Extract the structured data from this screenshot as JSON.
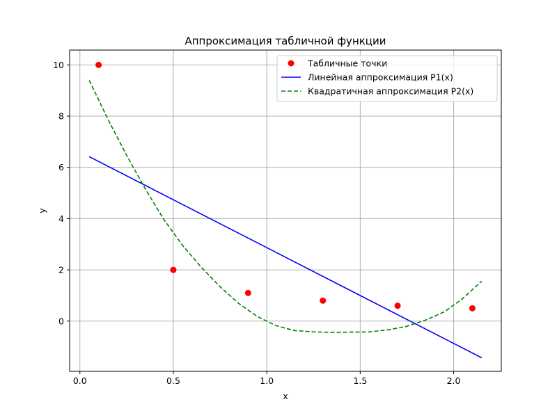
{
  "chart_data": {
    "type": "line",
    "title": "Аппроксимация табличной функции",
    "xlabel": "x",
    "ylabel": "y",
    "xlim": [
      -0.055,
      2.255
    ],
    "ylim": [
      -1.96,
      10.58
    ],
    "xticks": [
      0.0,
      0.5,
      1.0,
      1.5,
      2.0
    ],
    "xtick_labels": [
      "0.0",
      "0.5",
      "1.0",
      "1.5",
      "2.0"
    ],
    "yticks": [
      0,
      2,
      4,
      6,
      8,
      10
    ],
    "ytick_labels": [
      "0",
      "2",
      "4",
      "6",
      "8",
      "10"
    ],
    "grid": true,
    "legend_position": "top-right",
    "series": [
      {
        "name": "Табличные точки",
        "kind": "scatter",
        "color": "#ff0000",
        "x": [
          0.1,
          0.5,
          0.9,
          1.3,
          1.7,
          2.1
        ],
        "y": [
          10.0,
          2.0,
          1.1,
          0.8,
          0.6,
          0.5
        ]
      },
      {
        "name": "Линейная аппроксимация P1(x)",
        "kind": "line",
        "color": "#0000ff",
        "style": "solid",
        "x": [
          0.05,
          2.15
        ],
        "y": [
          6.42,
          -1.43
        ]
      },
      {
        "name": "Квадратичная аппроксимация P2(x)",
        "kind": "line",
        "color": "#008000",
        "style": "dashed",
        "x": [
          0.05,
          0.15,
          0.25,
          0.35,
          0.45,
          0.55,
          0.65,
          0.75,
          0.85,
          0.95,
          1.05,
          1.15,
          1.25,
          1.35,
          1.45,
          1.5,
          1.55,
          1.65,
          1.75,
          1.85,
          1.95,
          2.05,
          2.15
        ],
        "y": [
          9.4,
          7.88,
          6.47,
          5.16,
          3.96,
          2.95,
          2.1,
          1.34,
          0.69,
          0.18,
          -0.18,
          -0.37,
          -0.42,
          -0.44,
          -0.43,
          -0.43,
          -0.42,
          -0.34,
          -0.2,
          0.04,
          0.36,
          0.89,
          1.56
        ]
      }
    ]
  }
}
